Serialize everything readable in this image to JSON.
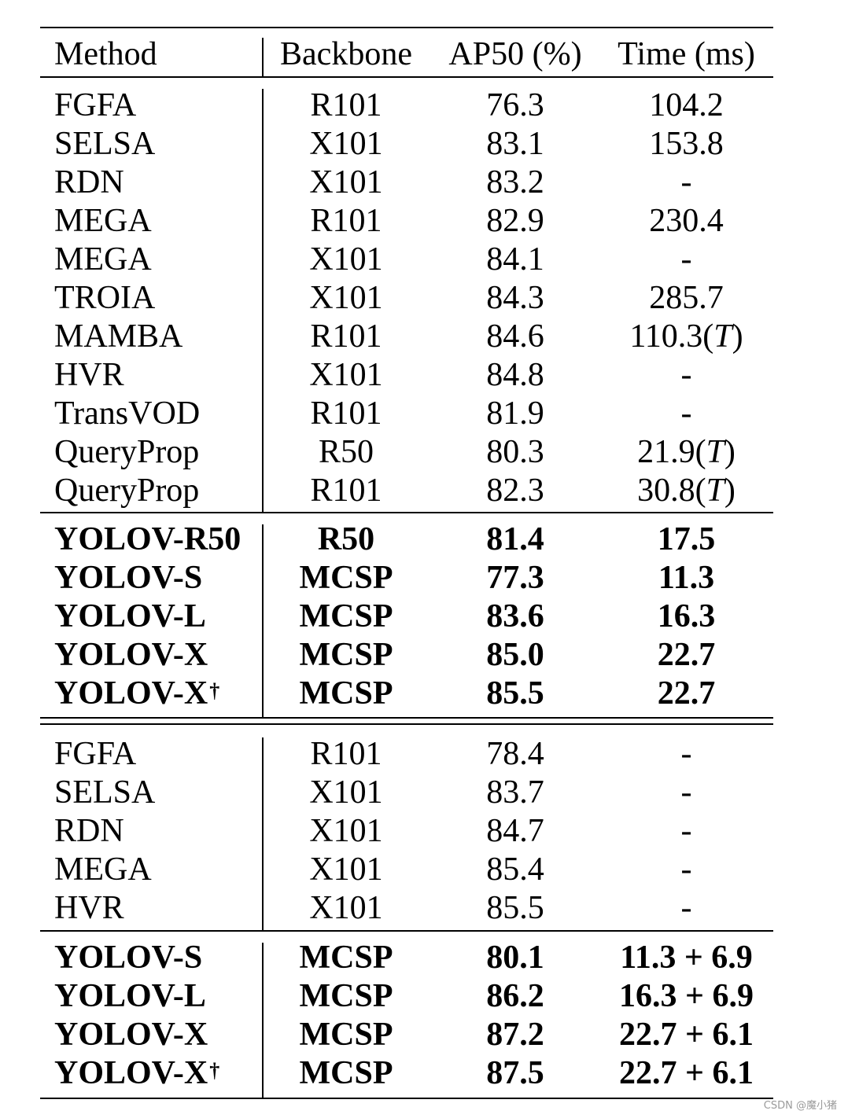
{
  "table": {
    "headers": [
      "Method",
      "Backbone",
      "AP50 (%)",
      "Time (ms)"
    ],
    "sections": [
      {
        "bold": false,
        "rows": [
          {
            "method": "FGFA",
            "dagger": "",
            "backbone": "R101",
            "ap50": "76.3",
            "time": "104.2",
            "time_suffix": ""
          },
          {
            "method": "SELSA",
            "dagger": "",
            "backbone": "X101",
            "ap50": "83.1",
            "time": "153.8",
            "time_suffix": ""
          },
          {
            "method": "RDN",
            "dagger": "",
            "backbone": "X101",
            "ap50": "83.2",
            "time": "-",
            "time_suffix": ""
          },
          {
            "method": "MEGA",
            "dagger": "",
            "backbone": "R101",
            "ap50": "82.9",
            "time": "230.4",
            "time_suffix": ""
          },
          {
            "method": "MEGA",
            "dagger": "",
            "backbone": "X101",
            "ap50": "84.1",
            "time": "-",
            "time_suffix": ""
          },
          {
            "method": "TROIA",
            "dagger": "",
            "backbone": "X101",
            "ap50": "84.3",
            "time": "285.7",
            "time_suffix": ""
          },
          {
            "method": "MAMBA",
            "dagger": "",
            "backbone": "R101",
            "ap50": "84.6",
            "time": "110.3",
            "time_suffix": "T"
          },
          {
            "method": "HVR",
            "dagger": "",
            "backbone": "X101",
            "ap50": "84.8",
            "time": "-",
            "time_suffix": ""
          },
          {
            "method": "TransVOD",
            "dagger": "",
            "backbone": "R101",
            "ap50": "81.9",
            "time": "-",
            "time_suffix": ""
          },
          {
            "method": "QueryProp",
            "dagger": "",
            "backbone": "R50",
            "ap50": "80.3",
            "time": "21.9",
            "time_suffix": "T"
          },
          {
            "method": "QueryProp",
            "dagger": "",
            "backbone": "R101",
            "ap50": "82.3",
            "time": "30.8",
            "time_suffix": "T"
          }
        ]
      },
      {
        "bold": true,
        "rows": [
          {
            "method": "YOLOV-R50",
            "dagger": "",
            "backbone": "R50",
            "ap50": "81.4",
            "time": "17.5",
            "time_suffix": ""
          },
          {
            "method": "YOLOV-S",
            "dagger": "",
            "backbone": "MCSP",
            "ap50": "77.3",
            "time": "11.3",
            "time_suffix": ""
          },
          {
            "method": "YOLOV-L",
            "dagger": "",
            "backbone": "MCSP",
            "ap50": "83.6",
            "time": "16.3",
            "time_suffix": ""
          },
          {
            "method": "YOLOV-X",
            "dagger": "",
            "backbone": "MCSP",
            "ap50": "85.0",
            "time": "22.7",
            "time_suffix": ""
          },
          {
            "method": "YOLOV-X",
            "dagger": "†",
            "backbone": "MCSP",
            "ap50": "85.5",
            "time": "22.7",
            "time_suffix": ""
          }
        ]
      },
      {
        "bold": false,
        "rows": [
          {
            "method": "FGFA",
            "dagger": "",
            "backbone": "R101",
            "ap50": "78.4",
            "time": "-",
            "time_suffix": ""
          },
          {
            "method": "SELSA",
            "dagger": "",
            "backbone": "X101",
            "ap50": "83.7",
            "time": "-",
            "time_suffix": ""
          },
          {
            "method": "RDN",
            "dagger": "",
            "backbone": "X101",
            "ap50": "84.7",
            "time": "-",
            "time_suffix": ""
          },
          {
            "method": "MEGA",
            "dagger": "",
            "backbone": "X101",
            "ap50": "85.4",
            "time": "-",
            "time_suffix": ""
          },
          {
            "method": "HVR",
            "dagger": "",
            "backbone": "X101",
            "ap50": "85.5",
            "time": "-",
            "time_suffix": ""
          }
        ]
      },
      {
        "bold": true,
        "rows": [
          {
            "method": "YOLOV-S",
            "dagger": "",
            "backbone": "MCSP",
            "ap50": "80.1",
            "time": "11.3 + 6.9",
            "time_suffix": ""
          },
          {
            "method": "YOLOV-L",
            "dagger": "",
            "backbone": "MCSP",
            "ap50": "86.2",
            "time": "16.3 + 6.9",
            "time_suffix": ""
          },
          {
            "method": "YOLOV-X",
            "dagger": "",
            "backbone": "MCSP",
            "ap50": "87.2",
            "time": "22.7 + 6.1",
            "time_suffix": ""
          },
          {
            "method": "YOLOV-X",
            "dagger": "†",
            "backbone": "MCSP",
            "ap50": "87.5",
            "time": "22.7 + 6.1",
            "time_suffix": ""
          }
        ]
      }
    ]
  },
  "watermark": "CSDN @魔小猪"
}
